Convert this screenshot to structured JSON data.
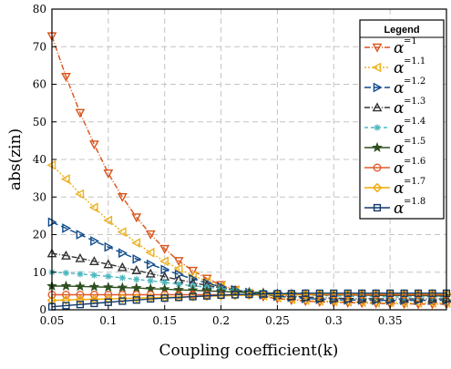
{
  "chart_data": {
    "type": "line",
    "xlabel": "Coupling coefficient(k)",
    "ylabel": "abs(zin)",
    "xlim": [
      0.05,
      0.4
    ],
    "ylim": [
      0,
      80
    ],
    "xticks": [
      0.05,
      0.1,
      0.15,
      0.2,
      0.25,
      0.3,
      0.35
    ],
    "xtick_labels": [
      "0.05",
      "0.1",
      "0.15",
      "0.2",
      "0.25",
      "0.3",
      "0.35"
    ],
    "yticks": [
      0,
      10,
      20,
      30,
      40,
      50,
      60,
      70,
      80
    ],
    "ytick_labels": [
      "0",
      "10",
      "20",
      "30",
      "40",
      "50",
      "60",
      "70",
      "80"
    ],
    "grid": true,
    "legend": {
      "title": "Legend",
      "placement": "top-right",
      "symbol": "α",
      "labels": [
        "=1",
        "=1.1",
        "=1.2",
        "=1.3",
        "=1.4",
        "=1.5",
        "=1.6",
        "=1.7",
        "=1.8"
      ]
    },
    "x": [
      0.05,
      0.0625,
      0.075,
      0.0875,
      0.1,
      0.1125,
      0.125,
      0.1375,
      0.15,
      0.1625,
      0.175,
      0.1875,
      0.2,
      0.2125,
      0.225,
      0.2375,
      0.25,
      0.2625,
      0.275,
      0.2875,
      0.3,
      0.3125,
      0.325,
      0.3375,
      0.35,
      0.3625,
      0.375,
      0.3875,
      0.4
    ],
    "series": [
      {
        "label": "=1",
        "color": "#d95319",
        "marker": "triangle-down",
        "dash": "6,2,1,2",
        "values": [
          72.8,
          62.0,
          52.4,
          44.0,
          36.3,
          30.0,
          24.6,
          20.1,
          16.2,
          13.0,
          10.4,
          8.3,
          6.6,
          5.3,
          4.3,
          3.5,
          3.0,
          2.6,
          2.3,
          2.1,
          2.0,
          1.9,
          1.8,
          1.7,
          1.6,
          1.6,
          1.5,
          1.5,
          1.5
        ]
      },
      {
        "label": "=1.1",
        "color": "#edb120",
        "marker": "triangle-left",
        "dash": "2,2",
        "values": [
          38.5,
          34.8,
          30.8,
          27.2,
          23.8,
          20.7,
          17.8,
          15.2,
          12.9,
          10.9,
          9.1,
          7.6,
          6.3,
          5.2,
          4.4,
          3.7,
          3.2,
          2.8,
          2.5,
          2.3,
          2.2,
          2.1,
          2.0,
          1.9,
          1.9,
          1.8,
          1.8,
          1.8,
          1.8
        ]
      },
      {
        "label": "=1.2",
        "color": "#0e4a8a",
        "marker": "triangle-right",
        "dash": "7,4",
        "values": [
          23.3,
          21.7,
          20.0,
          18.3,
          16.7,
          15.1,
          13.5,
          12.1,
          10.7,
          9.4,
          8.2,
          7.1,
          6.1,
          5.3,
          4.6,
          4.0,
          3.6,
          3.3,
          3.0,
          2.8,
          2.7,
          2.6,
          2.6,
          2.5,
          2.5,
          2.5,
          2.5,
          2.5,
          2.5
        ]
      },
      {
        "label": "=1.3",
        "color": "#333333",
        "marker": "triangle-up",
        "dash": "6,2,1,2",
        "values": [
          15.0,
          14.4,
          13.7,
          12.9,
          12.1,
          11.3,
          10.5,
          9.6,
          8.8,
          8.0,
          7.2,
          6.5,
          5.8,
          5.2,
          4.7,
          4.3,
          3.9,
          3.6,
          3.4,
          3.2,
          3.1,
          3.0,
          3.0,
          2.9,
          2.9,
          2.9,
          2.9,
          2.9,
          2.9
        ]
      },
      {
        "label": "=1.4",
        "color": "#4db8c0",
        "marker": "star",
        "dash": "4,3",
        "values": [
          10.0,
          9.8,
          9.5,
          9.2,
          8.9,
          8.5,
          8.1,
          7.7,
          7.3,
          6.8,
          6.4,
          6.0,
          5.6,
          5.2,
          4.9,
          4.6,
          4.3,
          4.1,
          3.9,
          3.8,
          3.7,
          3.6,
          3.5,
          3.5,
          3.4,
          3.4,
          3.4,
          3.4,
          3.4
        ]
      },
      {
        "label": "=1.5",
        "color": "#2f4f1f",
        "marker": "pentagram",
        "dash": "",
        "values": [
          6.3,
          6.3,
          6.2,
          6.1,
          6.0,
          5.9,
          5.8,
          5.6,
          5.5,
          5.3,
          5.2,
          5.0,
          4.9,
          4.7,
          4.6,
          4.5,
          4.3,
          4.2,
          4.1,
          4.0,
          4.0,
          3.9,
          3.9,
          3.8,
          3.8,
          3.8,
          3.8,
          3.7,
          3.7
        ]
      },
      {
        "label": "=1.6",
        "color": "#e05a2b",
        "marker": "circle",
        "dash": "",
        "values": [
          4.0,
          4.0,
          4.0,
          4.0,
          4.0,
          4.0,
          4.0,
          4.0,
          4.0,
          4.0,
          4.0,
          4.0,
          4.0,
          4.0,
          4.0,
          4.0,
          4.0,
          4.0,
          4.0,
          4.0,
          4.0,
          4.0,
          4.0,
          4.0,
          4.0,
          4.0,
          4.0,
          4.0,
          4.0
        ]
      },
      {
        "label": "=1.7",
        "color": "#f0a800",
        "marker": "diamond",
        "dash": "",
        "values": [
          2.5,
          2.6,
          2.7,
          2.8,
          2.9,
          3.0,
          3.1,
          3.2,
          3.3,
          3.4,
          3.5,
          3.6,
          3.7,
          3.8,
          3.9,
          4.0,
          4.0,
          4.1,
          4.1,
          4.2,
          4.2,
          4.2,
          4.3,
          4.3,
          4.3,
          4.3,
          4.3,
          4.3,
          4.3
        ]
      },
      {
        "label": "=1.8",
        "color": "#123a6b",
        "marker": "square",
        "dash": "",
        "values": [
          0.8,
          1.1,
          1.4,
          1.7,
          2.0,
          2.3,
          2.6,
          2.9,
          3.1,
          3.3,
          3.5,
          3.7,
          3.9,
          4.0,
          4.1,
          4.2,
          4.3,
          4.3,
          4.4,
          4.4,
          4.4,
          4.4,
          4.4,
          4.4,
          4.4,
          4.4,
          4.4,
          4.4,
          4.4
        ]
      }
    ]
  }
}
